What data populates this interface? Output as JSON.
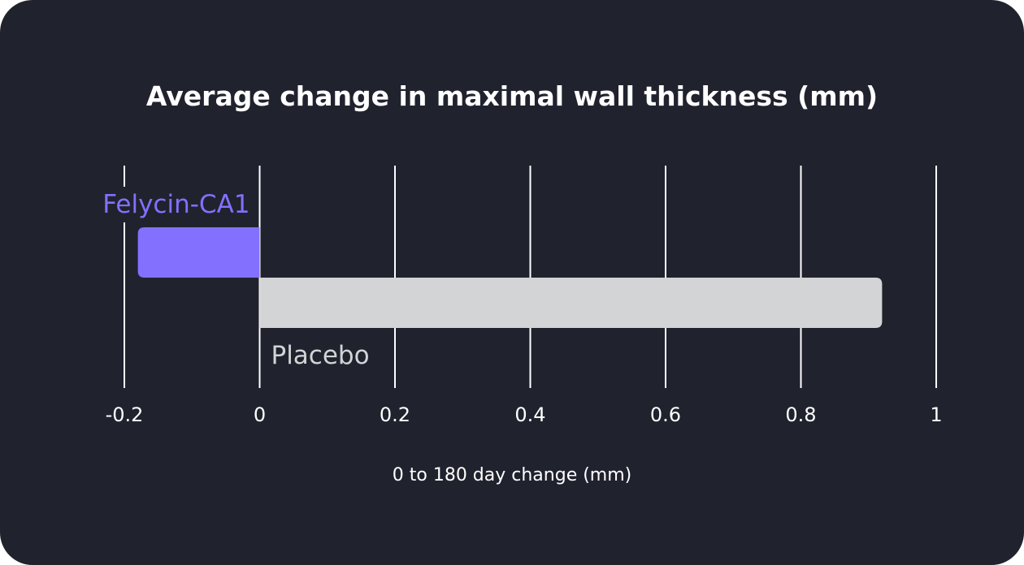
{
  "chart_data": {
    "type": "bar",
    "orientation": "horizontal",
    "title": "Average change in maximal wall thickness (mm)",
    "xlabel": "0 to 180 day change (mm)",
    "ylabel": "",
    "xlim": [
      -0.2,
      1
    ],
    "xticks": [
      "-0.2",
      "0",
      "0.2",
      "0.4",
      "0.6",
      "0.8",
      "1"
    ],
    "xtick_values": [
      -0.2,
      0,
      0.2,
      0.4,
      0.6,
      0.8,
      1
    ],
    "grid": true,
    "categories": [
      "Felycin-CA1",
      "Placebo"
    ],
    "values": [
      -0.18,
      0.92
    ],
    "colors": [
      "#8470ff",
      "#d3d4d6"
    ],
    "background": "#20222e"
  }
}
